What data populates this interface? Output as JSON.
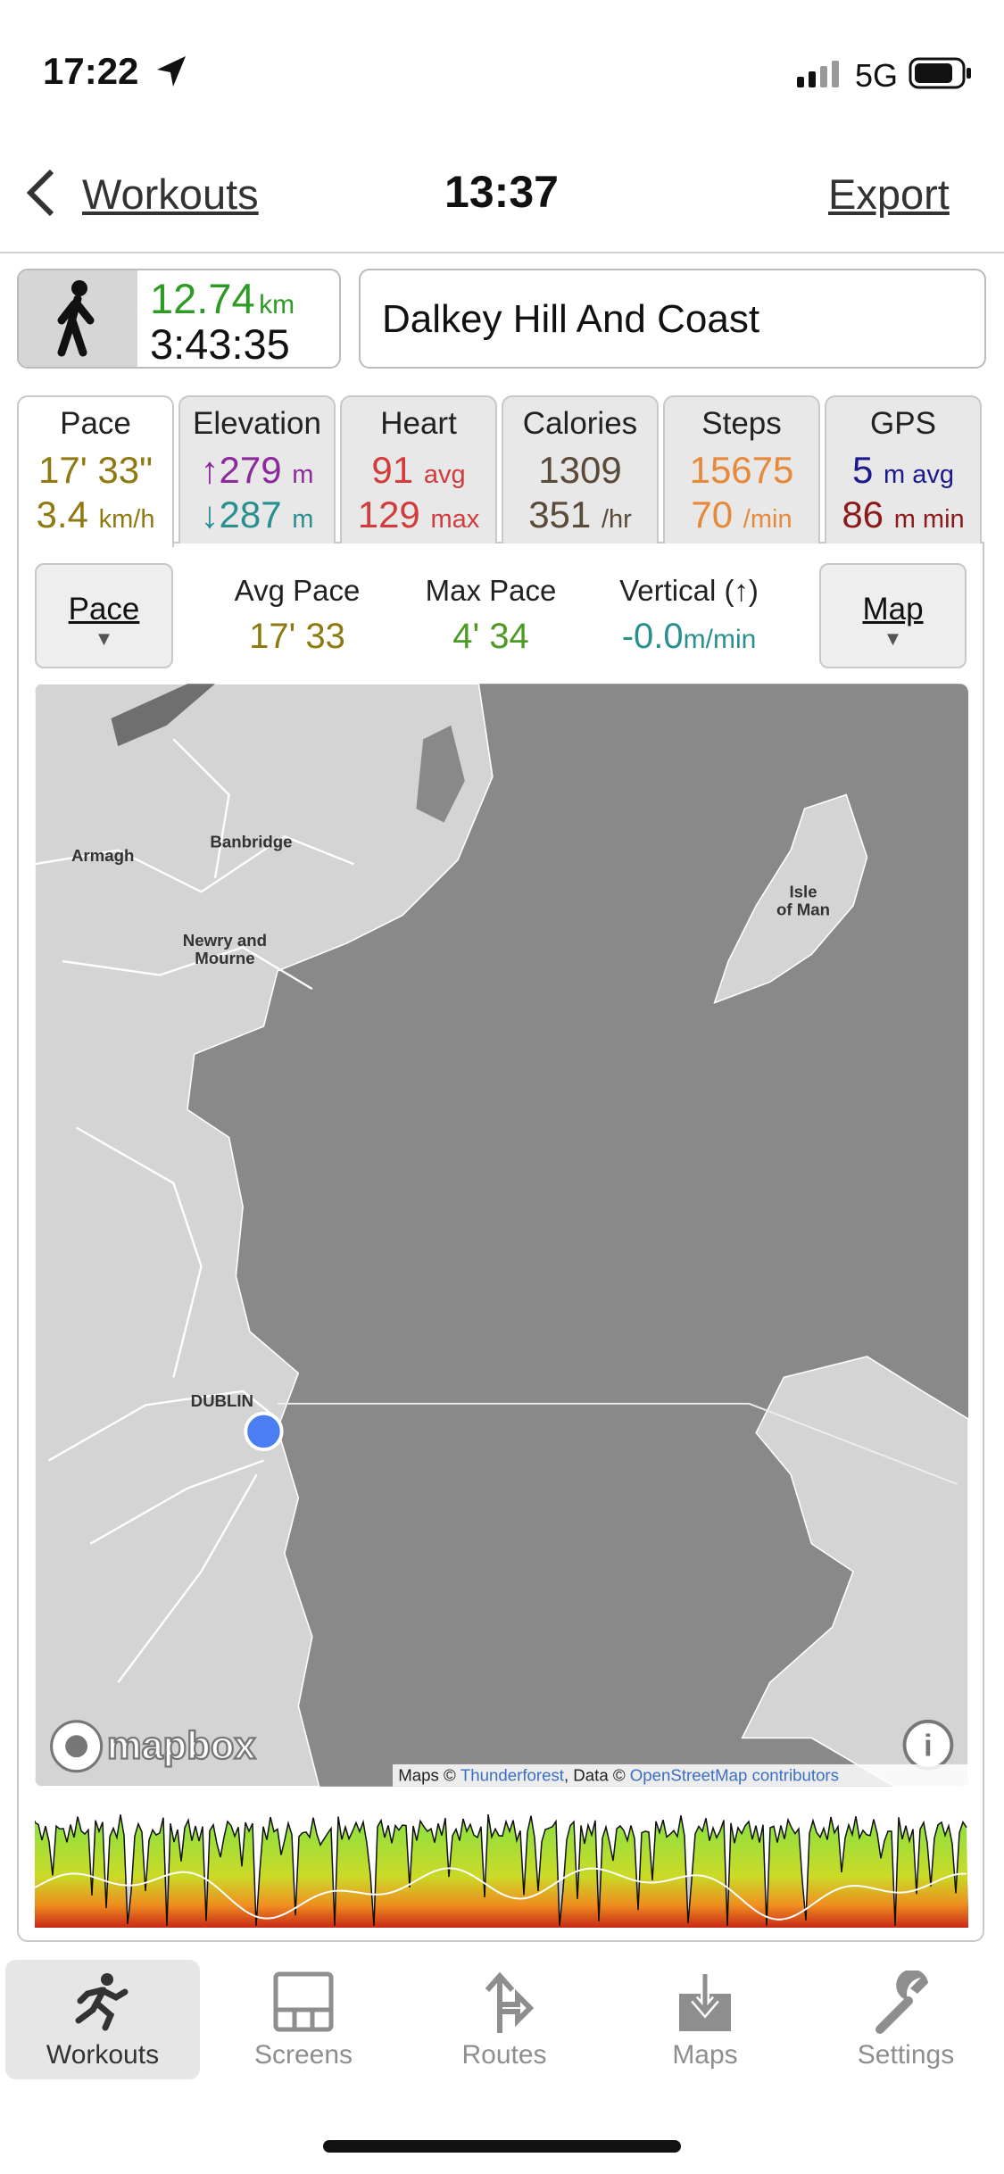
{
  "status_bar": {
    "time": "17:22",
    "network": "5G"
  },
  "nav": {
    "back": "Workouts",
    "title": "13:37",
    "action": "Export"
  },
  "summary": {
    "distance": "12.74",
    "distance_unit": "km",
    "duration": "3:43:35",
    "name": "Dalkey Hill And Coast"
  },
  "tabs": [
    {
      "label": "Pace",
      "rows": [
        {
          "value": "17' 33\""
        },
        {
          "value": "3.4",
          "unit": "km/h"
        }
      ]
    },
    {
      "label": "Elevation",
      "rows": [
        {
          "value": "↑279",
          "unit": "m"
        },
        {
          "value": "↓287",
          "unit": "m"
        }
      ]
    },
    {
      "label": "Heart",
      "rows": [
        {
          "value": "91",
          "unit": "avg"
        },
        {
          "value": "129",
          "unit": "max"
        }
      ]
    },
    {
      "label": "Calories",
      "rows": [
        {
          "value": "1309"
        },
        {
          "value": "351",
          "unit": "/hr"
        }
      ]
    },
    {
      "label": "Steps",
      "rows": [
        {
          "value": "15675"
        },
        {
          "value": "70",
          "unit": "/min"
        }
      ]
    },
    {
      "label": "GPS",
      "rows": [
        {
          "value": "5",
          "unit": "m avg"
        },
        {
          "value": "86",
          "unit": "m min"
        }
      ]
    }
  ],
  "stats": {
    "left_button": "Pace",
    "right_button": "Map",
    "items": [
      {
        "label": "Avg Pace",
        "value": "17' 33"
      },
      {
        "label": "Max Pace",
        "value": "4' 34"
      },
      {
        "label": "Vertical (↑)",
        "value": "-0.0",
        "unit": "m/min"
      }
    ]
  },
  "map": {
    "labels": {
      "armagh": [
        "Armagh"
      ],
      "banbridge": [
        "Banbridge"
      ],
      "newry": [
        "Newry and",
        "Mourne"
      ],
      "isle_of_man": [
        "Isle",
        "of Man"
      ],
      "dublin": [
        "DUBLIN"
      ]
    },
    "logo": "mapbox",
    "attribution": {
      "maps": "Maps ©",
      "maps_link": "Thunderforest",
      "data": ", Data ©",
      "data_link": "OpenStreetMap contributors"
    }
  },
  "tab_bar": [
    "Workouts",
    "Screens",
    "Routes",
    "Maps",
    "Settings"
  ]
}
